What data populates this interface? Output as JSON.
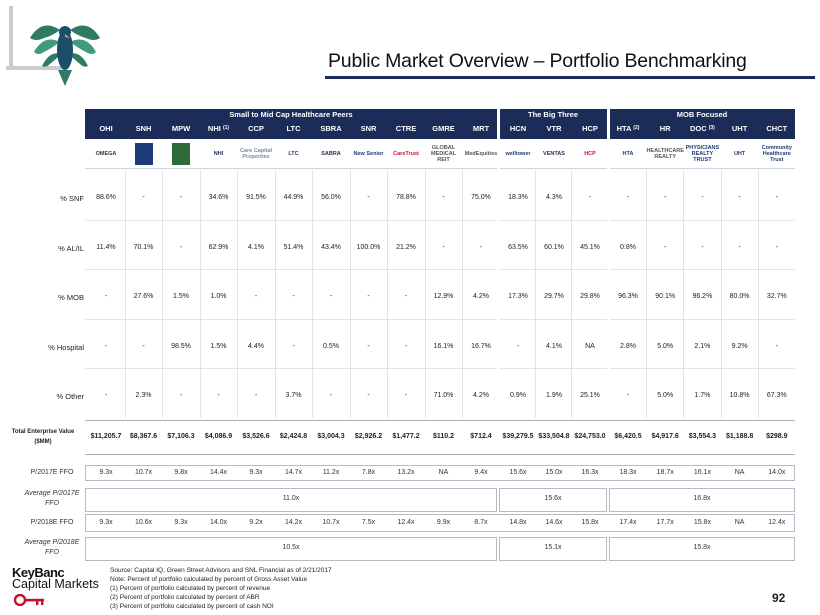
{
  "title": "Public Market Overview – Portfolio Benchmarking",
  "groups": [
    {
      "label": "Small to Mid Cap Healthcare Peers"
    },
    {
      "label": "The Big Three"
    },
    {
      "label": "MOB Focused"
    }
  ],
  "tickers": [
    {
      "t": "OHI",
      "sup": ""
    },
    {
      "t": "SNH",
      "sup": ""
    },
    {
      "t": "MPW",
      "sup": ""
    },
    {
      "t": "NHI",
      "sup": "(1)"
    },
    {
      "t": "CCP",
      "sup": ""
    },
    {
      "t": "LTC",
      "sup": ""
    },
    {
      "t": "SBRA",
      "sup": ""
    },
    {
      "t": "SNR",
      "sup": ""
    },
    {
      "t": "CTRE",
      "sup": ""
    },
    {
      "t": "GMRE",
      "sup": ""
    },
    {
      "t": "MRT",
      "sup": ""
    },
    {
      "t": "HCN",
      "sup": ""
    },
    {
      "t": "VTR",
      "sup": ""
    },
    {
      "t": "HCP",
      "sup": ""
    },
    {
      "t": "HTA",
      "sup": "(2)"
    },
    {
      "t": "HR",
      "sup": ""
    },
    {
      "t": "DOC",
      "sup": "(3)"
    },
    {
      "t": "UHT",
      "sup": ""
    },
    {
      "t": "CHCT",
      "sup": ""
    }
  ],
  "company_logos": [
    "OMEGA",
    "",
    "",
    "NHI",
    "Care Capital Properties",
    "LTC",
    "SABRA",
    "New Senior",
    "CareTrust",
    "GLOBAL MEDICAL REIT",
    "MedEquities",
    "welltower",
    "VENTAS",
    "HCP",
    "HTA",
    "HEALTHCARE REALTY",
    "PHYSICIANS REALTY TRUST",
    "UHT",
    "Community Healthcare Trust"
  ],
  "rows": [
    {
      "label": "% SNF",
      "values": [
        "88.6%",
        "-",
        "-",
        "34.6%",
        "91.5%",
        "44.9%",
        "56.0%",
        "-",
        "78.8%",
        "-",
        "75.0%",
        "18.3%",
        "4.3%",
        "-",
        "-",
        "-",
        "-",
        "-",
        "-"
      ]
    },
    {
      "label": "% AL/IL",
      "values": [
        "11.4%",
        "70.1%",
        "-",
        "62.9%",
        "4.1%",
        "51.4%",
        "43.4%",
        "100.0%",
        "21.2%",
        "-",
        "-",
        "63.5%",
        "60.1%",
        "45.1%",
        "0.8%",
        "-",
        "-",
        "-",
        "-"
      ]
    },
    {
      "label": "% MOB",
      "values": [
        "-",
        "27.6%",
        "1.5%",
        "1.0%",
        "-",
        "-",
        "-",
        "-",
        "-",
        "12.9%",
        "4.2%",
        "17.3%",
        "29.7%",
        "29.8%",
        "96.3%",
        "90.1%",
        "96.2%",
        "80.0%",
        "32.7%"
      ]
    },
    {
      "label": "% Hospital",
      "values": [
        "-",
        "-",
        "98.5%",
        "1.5%",
        "4.4%",
        "-",
        "0.5%",
        "-",
        "-",
        "16.1%",
        "16.7%",
        "-",
        "4.1%",
        "NA",
        "2.8%",
        "5.0%",
        "2.1%",
        "9.2%",
        "-"
      ]
    },
    {
      "label": "% Other",
      "values": [
        "-",
        "2.3%",
        "-",
        "-",
        "-",
        "3.7%",
        "-",
        "-",
        "-",
        "71.0%",
        "4.2%",
        "0.9%",
        "1.9%",
        "25.1%",
        "-",
        "5.0%",
        "1.7%",
        "10.8%",
        "67.3%"
      ]
    }
  ],
  "tev": {
    "label": "Total Enterprise Value ($MM)",
    "values": [
      "$11,205.7",
      "$8,367.6",
      "$7,106.3",
      "$4,086.9",
      "$3,526.6",
      "$2,424.8",
      "$3,004.3",
      "$2,926.2",
      "$1,477.2",
      "$110.2",
      "$712.4",
      "$39,279.5",
      "$33,504.8",
      "$24,753.0",
      "$6,420.5",
      "$4,917.6",
      "$3,554.3",
      "$1,188.8",
      "$298.9"
    ]
  },
  "p2017": {
    "label": "P/2017E FFO",
    "values": [
      "9.3x",
      "10.7x",
      "9.8x",
      "14.4x",
      "9.3x",
      "14.7x",
      "11.2x",
      "7.8x",
      "13.2x",
      "NA",
      "9.4x",
      "15.6x",
      "15.0x",
      "16.3x",
      "18.3x",
      "18.7x",
      "16.1x",
      "NA",
      "14.0x"
    ]
  },
  "avg2017": {
    "label": "Average P/2017E FFO",
    "values": [
      "11.0x",
      "15.6x",
      "16.8x"
    ]
  },
  "p2018": {
    "label": "P/2018E FFO",
    "values": [
      "9.3x",
      "10.6x",
      "9.3x",
      "14.0x",
      "9.2x",
      "14.2x",
      "10.7x",
      "7.5x",
      "12.4x",
      "9.9x",
      "8.7x",
      "14.8x",
      "14.6x",
      "15.8x",
      "17.4x",
      "17.7x",
      "15.8x",
      "NA",
      "12.4x"
    ]
  },
  "avg2018": {
    "label": "Average P/2018E FFO",
    "values": [
      "10.5x",
      "15.1x",
      "15.8x"
    ]
  },
  "footnotes": [
    "Source: Capital IQ, Green Street Advisors and SNL Financial as of 2/21/2017",
    "Note: Percent of portfolio calculated by percent of Gross Asset Value",
    "(1)  Percent of portfolio calculated by percent of revenue",
    "(2)  Percent of portfolio calculated by percent of ABR",
    "(3)  Percent of portfolio calculated by percent of cash NOI"
  ],
  "brand": {
    "line1": "KeyBanc",
    "line2": "Capital Markets"
  },
  "page_number": "92",
  "colors": {
    "navy": "#1c2c58",
    "brand_red": "#c8102e"
  }
}
